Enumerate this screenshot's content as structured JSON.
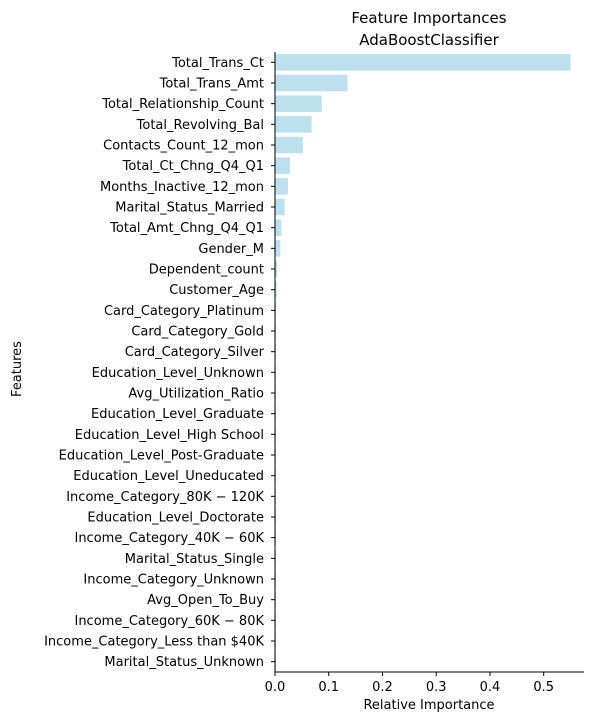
{
  "chart_data": {
    "type": "bar",
    "orientation": "horizontal",
    "title": "Feature Importances",
    "subtitle": "AdaBoostClassifier",
    "xlabel": "Relative Importance",
    "ylabel": "Features",
    "xlim": [
      0,
      0.575
    ],
    "xticks": [
      "0.0",
      "0.1",
      "0.2",
      "0.3",
      "0.4",
      "0.5"
    ],
    "xtick_values": [
      0.0,
      0.1,
      0.2,
      0.3,
      0.4,
      0.5
    ],
    "grid": false,
    "bar_color": "#bde0ee",
    "categories": [
      "Total_Trans_Ct",
      "Total_Trans_Amt",
      "Total_Relationship_Count",
      "Total_Revolving_Bal",
      "Contacts_Count_12_mon",
      "Total_Ct_Chng_Q4_Q1",
      "Months_Inactive_12_mon",
      "Marital_Status_Married",
      "Total_Amt_Chng_Q4_Q1",
      "Gender_M",
      "Dependent_count",
      "Customer_Age",
      "Card_Category_Platinum",
      "Card_Category_Gold",
      "Card_Category_Silver",
      "Education_Level_Unknown",
      "Avg_Utilization_Ratio",
      "Education_Level_Graduate",
      "Education_Level_High School",
      "Education_Level_Post-Graduate",
      "Education_Level_Uneducated",
      "Income_Category_$80K - $120K",
      "Education_Level_Doctorate",
      "Income_Category_$40K - $60K",
      "Marital_Status_Single",
      "Income_Category_Unknown",
      "Avg_Open_To_Buy",
      "Income_Category_$60K - $80K",
      "Income_Category_Less than $40K",
      "Marital_Status_Unknown"
    ],
    "category_display": [
      "Total_Trans_Ct",
      "Total_Trans_Amt",
      "Total_Relationship_Count",
      "Total_Revolving_Bal",
      "Contacts_Count_12_mon",
      "Total_Ct_Chng_Q4_Q1",
      "Months_Inactive_12_mon",
      "Marital_Status_Married",
      "Total_Amt_Chng_Q4_Q1",
      "Gender_M",
      "Dependent_count",
      "Customer_Age",
      "Card_Category_Platinum",
      "Card_Category_Gold",
      "Card_Category_Silver",
      "Education_Level_Unknown",
      "Avg_Utilization_Ratio",
      "Education_Level_Graduate",
      "Education_Level_High School",
      "Education_Level_Post-Graduate",
      "Education_Level_Uneducated",
      "Income_Category_80K − 120K",
      "Education_Level_Doctorate",
      "Income_Category_40K − 60K",
      "Marital_Status_Single",
      "Income_Category_Unknown",
      "Avg_Open_To_Buy",
      "Income_Category_60K − 80K",
      "Income_Category_Less than $40K",
      "Marital_Status_Unknown"
    ],
    "values": [
      0.55,
      0.135,
      0.087,
      0.068,
      0.052,
      0.028,
      0.024,
      0.018,
      0.012,
      0.01,
      0.004,
      0.003,
      0.002,
      0.002,
      0.002,
      0.002,
      0.002,
      0.002,
      0.002,
      0.002,
      0.002,
      0.002,
      0.002,
      0.002,
      0.002,
      0.002,
      0.002,
      0.002,
      0.002,
      0.002
    ]
  }
}
